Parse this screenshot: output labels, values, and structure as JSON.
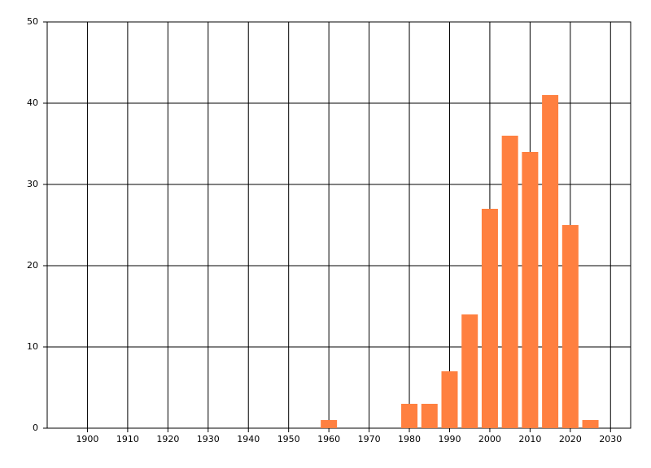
{
  "chart_data": {
    "type": "bar",
    "x": [
      1960,
      1980,
      1985,
      1990,
      1995,
      2000,
      2005,
      2010,
      2015,
      2020,
      2025
    ],
    "values": [
      1,
      3,
      3,
      7,
      14,
      27,
      36,
      34,
      41,
      25,
      1
    ],
    "color": "#ff8040",
    "xlim": [
      1890,
      2035
    ],
    "xticks": [
      1900,
      1910,
      1920,
      1930,
      1940,
      1950,
      1960,
      1970,
      1980,
      1990,
      2000,
      2010,
      2020,
      2030
    ],
    "ylim": [
      0,
      50
    ],
    "yticks": [
      0,
      10,
      20,
      30,
      40,
      50
    ],
    "grid": true
  }
}
